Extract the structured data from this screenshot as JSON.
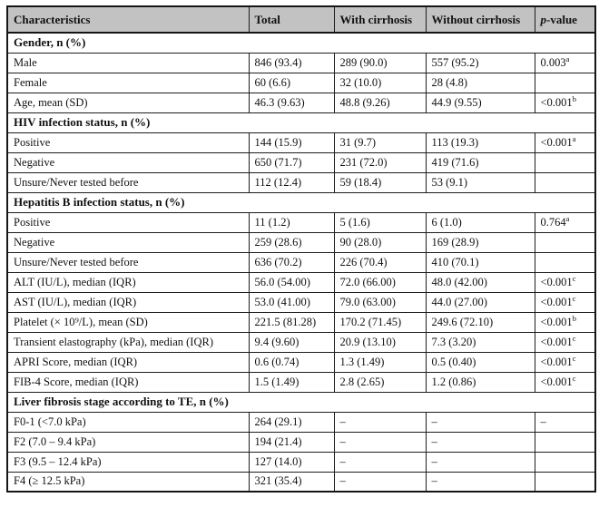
{
  "colors": {
    "header_background": "#c2c2c2",
    "border": "#1d1d1d",
    "text": "#111111"
  },
  "table": {
    "columns": [
      "Characteristics",
      "Total",
      "With cirrhosis",
      "Without cirrhosis"
    ],
    "p_header": {
      "italic": "p",
      "rest": "-value"
    },
    "rows": [
      {
        "type": "section",
        "label": "Gender, n (%)"
      },
      {
        "type": "data",
        "label": "Male",
        "total": "846 (93.4)",
        "with_cirrhosis": "289 (90.0)",
        "without_cirrhosis": "557 (95.2)",
        "p": "0.003",
        "p_sup": "a"
      },
      {
        "type": "data",
        "label": "Female",
        "total": "60 (6.6)",
        "with_cirrhosis": "32 (10.0)",
        "without_cirrhosis": "28 (4.8)",
        "p": ""
      },
      {
        "type": "data",
        "label": "Age, mean (SD)",
        "total": "46.3 (9.63)",
        "with_cirrhosis": "48.8 (9.26)",
        "without_cirrhosis": "44.9 (9.55)",
        "p": "<0.001",
        "p_sup": "b"
      },
      {
        "type": "section",
        "label": "HIV infection status, n (%)"
      },
      {
        "type": "data",
        "label": "Positive",
        "total": "144 (15.9)",
        "with_cirrhosis": "31 (9.7)",
        "without_cirrhosis": "113 (19.3)",
        "p": "<0.001",
        "p_sup": "a"
      },
      {
        "type": "data",
        "label": "Negative",
        "total": "650 (71.7)",
        "with_cirrhosis": "231 (72.0)",
        "without_cirrhosis": "419 (71.6)",
        "p": ""
      },
      {
        "type": "data",
        "label": "Unsure/Never tested before",
        "total": "112 (12.4)",
        "with_cirrhosis": "59 (18.4)",
        "without_cirrhosis": "53 (9.1)",
        "p": ""
      },
      {
        "type": "section",
        "label": "Hepatitis B infection status, n (%)"
      },
      {
        "type": "data",
        "label": "Positive",
        "total": "11 (1.2)",
        "with_cirrhosis": "5 (1.6)",
        "without_cirrhosis": "6 (1.0)",
        "p": "0.764",
        "p_sup": "a"
      },
      {
        "type": "data",
        "label": "Negative",
        "total": "259 (28.6)",
        "with_cirrhosis": "90 (28.0)",
        "without_cirrhosis": "169 (28.9)",
        "p": ""
      },
      {
        "type": "data",
        "label": "Unsure/Never tested before",
        "total": "636 (70.2)",
        "with_cirrhosis": "226 (70.4)",
        "without_cirrhosis": "410 (70.1)",
        "p": ""
      },
      {
        "type": "data",
        "label": "ALT (IU/L), median (IQR)",
        "total": "56.0 (54.00)",
        "with_cirrhosis": "72.0 (66.00)",
        "without_cirrhosis": "48.0 (42.00)",
        "p": "<0.001",
        "p_sup": "c"
      },
      {
        "type": "data",
        "label": "AST (IU/L), median (IQR)",
        "total": "53.0 (41.00)",
        "with_cirrhosis": "79.0 (63.00)",
        "without_cirrhosis": "44.0 (27.00)",
        "p": "<0.001",
        "p_sup": "c"
      },
      {
        "type": "data",
        "label": "Platelet (× 10⁹/L), mean (SD)",
        "total": "221.5 (81.28)",
        "with_cirrhosis": "170.2 (71.45)",
        "without_cirrhosis": "249.6 (72.10)",
        "p": "<0.001",
        "p_sup": "b"
      },
      {
        "type": "data",
        "label": "Transient elastography (kPa), median (IQR)",
        "total": "9.4 (9.60)",
        "with_cirrhosis": "20.9 (13.10)",
        "without_cirrhosis": "7.3 (3.20)",
        "p": "<0.001",
        "p_sup": "c"
      },
      {
        "type": "data",
        "label": "APRI Score, median (IQR)",
        "total": "0.6 (0.74)",
        "with_cirrhosis": "1.3 (1.49)",
        "without_cirrhosis": "0.5 (0.40)",
        "p": "<0.001",
        "p_sup": "c"
      },
      {
        "type": "data",
        "label": "FIB-4 Score, median (IQR)",
        "total": "1.5 (1.49)",
        "with_cirrhosis": "2.8 (2.65)",
        "without_cirrhosis": "1.2 (0.86)",
        "p": "<0.001",
        "p_sup": "c"
      },
      {
        "type": "section",
        "label": "Liver fibrosis stage according to TE, n (%)"
      },
      {
        "type": "data",
        "label": "F0-1 (<7.0 kPa)",
        "total": "264 (29.1)",
        "with_cirrhosis": "–",
        "without_cirrhosis": "–",
        "p": "–"
      },
      {
        "type": "data",
        "label": "F2 (7.0 – 9.4 kPa)",
        "total": "194 (21.4)",
        "with_cirrhosis": "–",
        "without_cirrhosis": "–",
        "p": ""
      },
      {
        "type": "data",
        "label": "F3 (9.5 – 12.4 kPa)",
        "total": "127 (14.0)",
        "with_cirrhosis": "–",
        "without_cirrhosis": "–",
        "p": ""
      },
      {
        "type": "data",
        "label": "F4 (≥ 12.5 kPa)",
        "total": "321 (35.4)",
        "with_cirrhosis": "–",
        "without_cirrhosis": "–",
        "p": ""
      }
    ]
  }
}
